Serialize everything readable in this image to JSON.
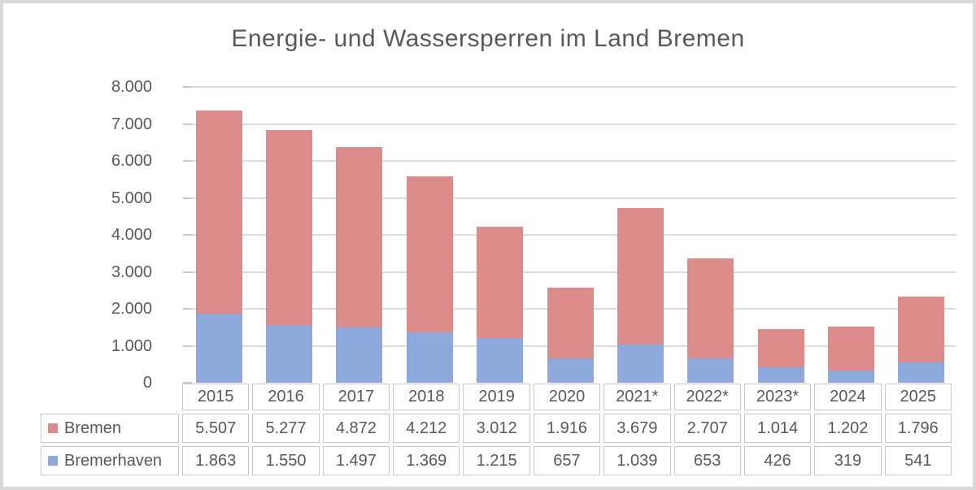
{
  "chart_data": {
    "type": "bar",
    "stacked": true,
    "title": "Energie- und Wassersperren im Land Bremen",
    "categories": [
      "2015",
      "2016",
      "2017",
      "2018",
      "2019",
      "2020",
      "2021*",
      "2022*",
      "2023*",
      "2024",
      "2025"
    ],
    "series": [
      {
        "name": "Bremen",
        "color": "#db8c8a",
        "values": [
          5507,
          5277,
          4872,
          4212,
          3012,
          1916,
          3679,
          2707,
          1014,
          1202,
          1796
        ],
        "labels": [
          "5.507",
          "5.277",
          "4.872",
          "4.212",
          "3.012",
          "1.916",
          "3.679",
          "2.707",
          "1.014",
          "1.202",
          "1.796"
        ]
      },
      {
        "name": "Bremerhaven",
        "color": "#8ea9db",
        "values": [
          1863,
          1550,
          1497,
          1369,
          1215,
          657,
          1039,
          653,
          426,
          319,
          541
        ],
        "labels": [
          "1.863",
          "1.550",
          "1.497",
          "1.369",
          "1.215",
          "657",
          "1.039",
          "653",
          "426",
          "319",
          "541"
        ]
      }
    ],
    "ylim": [
      0,
      8000
    ],
    "ytick_interval": 1000,
    "ytick_labels": [
      "0",
      "1.000",
      "2.000",
      "3.000",
      "4.000",
      "5.000",
      "6.000",
      "7.000",
      "8.000"
    ],
    "grid": true,
    "legend_position": "table-left",
    "xlabel": "",
    "ylabel": ""
  }
}
